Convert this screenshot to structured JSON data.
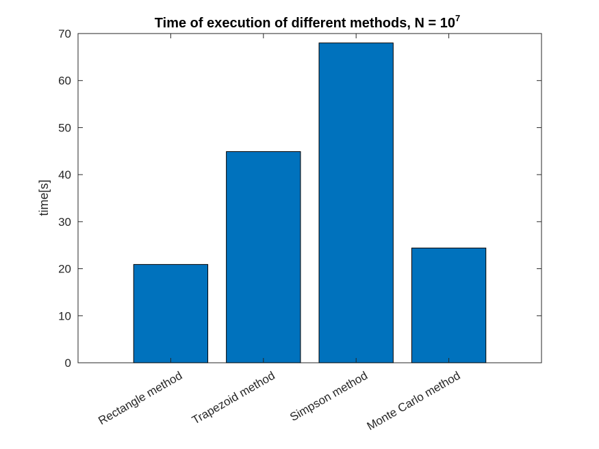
{
  "chart_data": {
    "type": "bar",
    "title": "Time of execution of different methods, N = 10",
    "title_superscript": "7",
    "xlabel": "",
    "ylabel": "time[s]",
    "categories": [
      "Rectangle method",
      "Trapezoid method",
      "Simpson method",
      "Monte Carlo method"
    ],
    "values": [
      20.9,
      44.9,
      68.0,
      24.4
    ],
    "ylim": [
      0,
      70
    ],
    "yticks": [
      0,
      10,
      20,
      30,
      40,
      50,
      60,
      70
    ],
    "grid": false,
    "legend": "none",
    "bar_color": "#0072BD",
    "bar_edge_color": "#000000"
  }
}
